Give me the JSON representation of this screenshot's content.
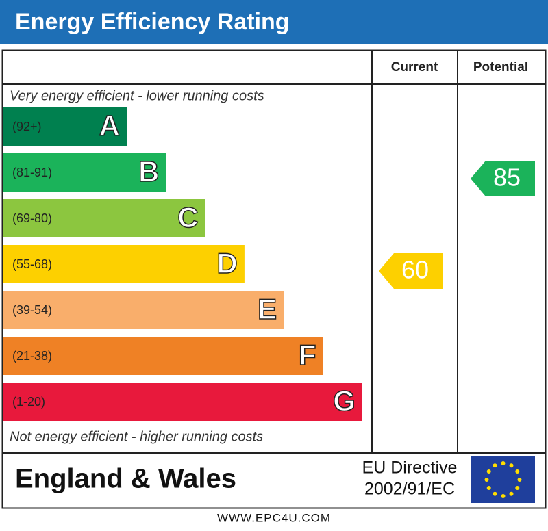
{
  "title": "Energy Efficiency Rating",
  "columns": [
    "Current",
    "Potential"
  ],
  "top_note": "Very energy efficient - lower running costs",
  "bands": [
    {
      "range": "(92+)",
      "letter": "A",
      "color": "#00804f"
    },
    {
      "range": "(81-91)",
      "letter": "B",
      "color": "#1bb35a"
    },
    {
      "range": "(69-80)",
      "letter": "C",
      "color": "#8cc63f"
    },
    {
      "range": "(55-68)",
      "letter": "D",
      "color": "#fdd000"
    },
    {
      "range": "(39-54)",
      "letter": "E",
      "color": "#f9ae6b"
    },
    {
      "range": "(21-38)",
      "letter": "F",
      "color": "#ef8125"
    },
    {
      "range": "(1-20)",
      "letter": "G",
      "color": "#e8193c"
    }
  ],
  "bottom_note": "Not energy efficient - higher running costs",
  "current": 60,
  "potential": 85,
  "region": "England & Wales",
  "directive": [
    "EU Directive",
    "2002/91/EC"
  ],
  "footer": "WWW.EPC4U.COM"
}
